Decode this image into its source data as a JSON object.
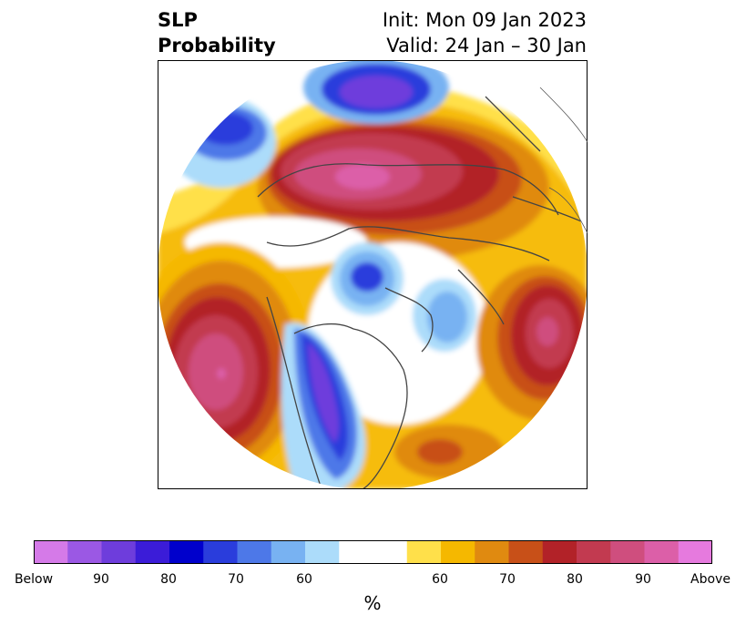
{
  "title": {
    "line1_left": "SLP",
    "line2_left": "Probability",
    "line1_right": "Init: Mon 09 Jan 2023",
    "line2_right": "Valid: 24 Jan – 30 Jan"
  },
  "colorbar": {
    "below_colors": [
      "#d57ae8",
      "#9b58e4",
      "#6e3ddc",
      "#3b1cd8",
      "#0000cc",
      "#2a3ddc",
      "#4d78e8",
      "#78b2f2",
      "#acdcfa"
    ],
    "neutral_color": "#ffffff",
    "above_colors": [
      "#ffe04a",
      "#f5b800",
      "#e08a10",
      "#c85018",
      "#b22228",
      "#c23a50",
      "#cf4e7e",
      "#dc5fa8",
      "#e67ade"
    ],
    "labels": [
      "Below",
      "90",
      "80",
      "70",
      "60",
      "60",
      "70",
      "80",
      "90",
      "Above"
    ],
    "unit": "%"
  }
}
